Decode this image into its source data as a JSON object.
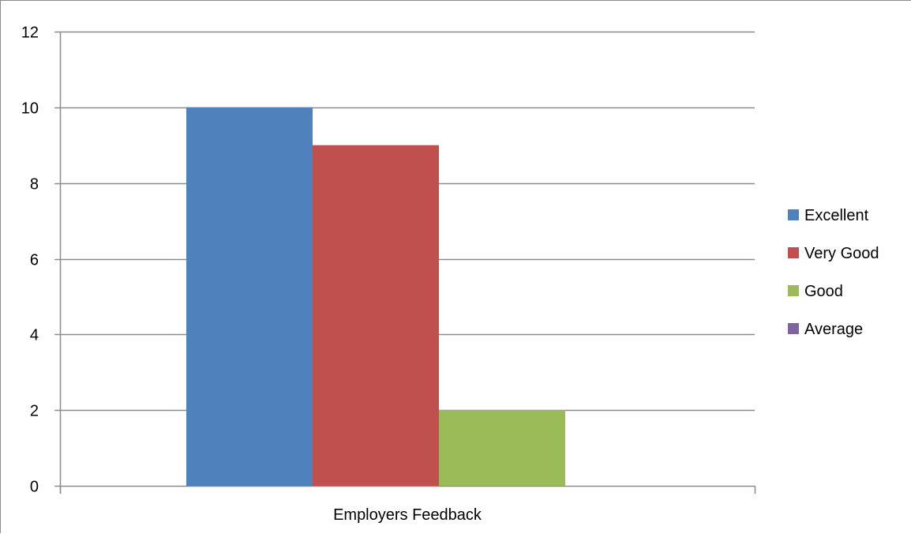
{
  "chart_data": {
    "type": "bar",
    "categories": [
      "Employers Feedback"
    ],
    "series": [
      {
        "name": "Excellent",
        "values": [
          10
        ],
        "color": "#4f81bd"
      },
      {
        "name": "Very Good",
        "values": [
          9
        ],
        "color": "#c0504d"
      },
      {
        "name": "Good",
        "values": [
          2
        ],
        "color": "#9bbb59"
      },
      {
        "name": "Average",
        "values": [
          0
        ],
        "color": "#8064a2"
      }
    ],
    "title": "",
    "xlabel": "",
    "ylabel": "",
    "ylim": [
      0,
      12
    ],
    "yticks": [
      "0",
      "2",
      "4",
      "6",
      "8",
      "10",
      "12"
    ],
    "grid": true,
    "legend": "right"
  }
}
